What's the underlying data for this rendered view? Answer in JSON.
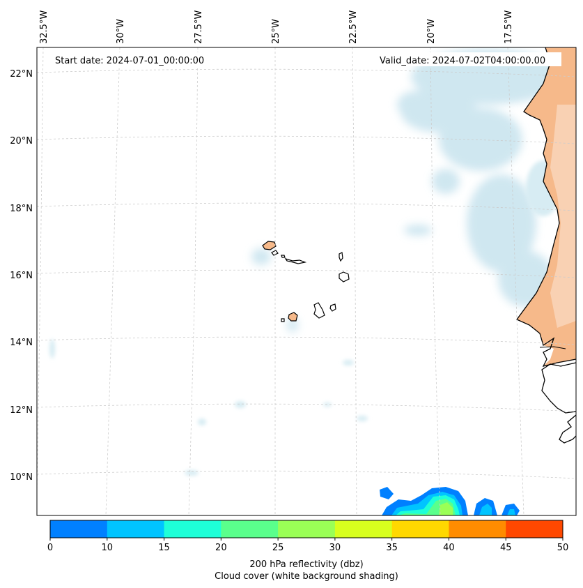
{
  "header": {
    "start_date": "Start date: 2024-07-01_00:00:00",
    "valid_date": "Valid_date: 2024-07-02T04:00:00.00"
  },
  "lon_labels": [
    "32.5°W",
    "30°W",
    "27.5°W",
    "25°W",
    "22.5°W",
    "20°W",
    "17.5°W"
  ],
  "lat_labels": [
    "22°N",
    "20°N",
    "18°N",
    "16°N",
    "14°N",
    "12°N",
    "10°N"
  ],
  "colorbar": {
    "ticks": [
      "0",
      "10",
      "15",
      "20",
      "25",
      "30",
      "35",
      "40",
      "45",
      "50"
    ],
    "colors": [
      "#0080ff",
      "#00c4ff",
      "#1effd8",
      "#5aff8c",
      "#9aff56",
      "#d8ff1e",
      "#ffd800",
      "#ff8c00",
      "#ff4800"
    ],
    "label_line1": "200 hPa reflectivity (dbz)",
    "label_line2": "Cloud cover (white background shading)"
  },
  "colors": {
    "land": "#f6b98a",
    "cloud": "#c7e3ee",
    "coast": "#000000",
    "grid": "#cccccc"
  }
}
